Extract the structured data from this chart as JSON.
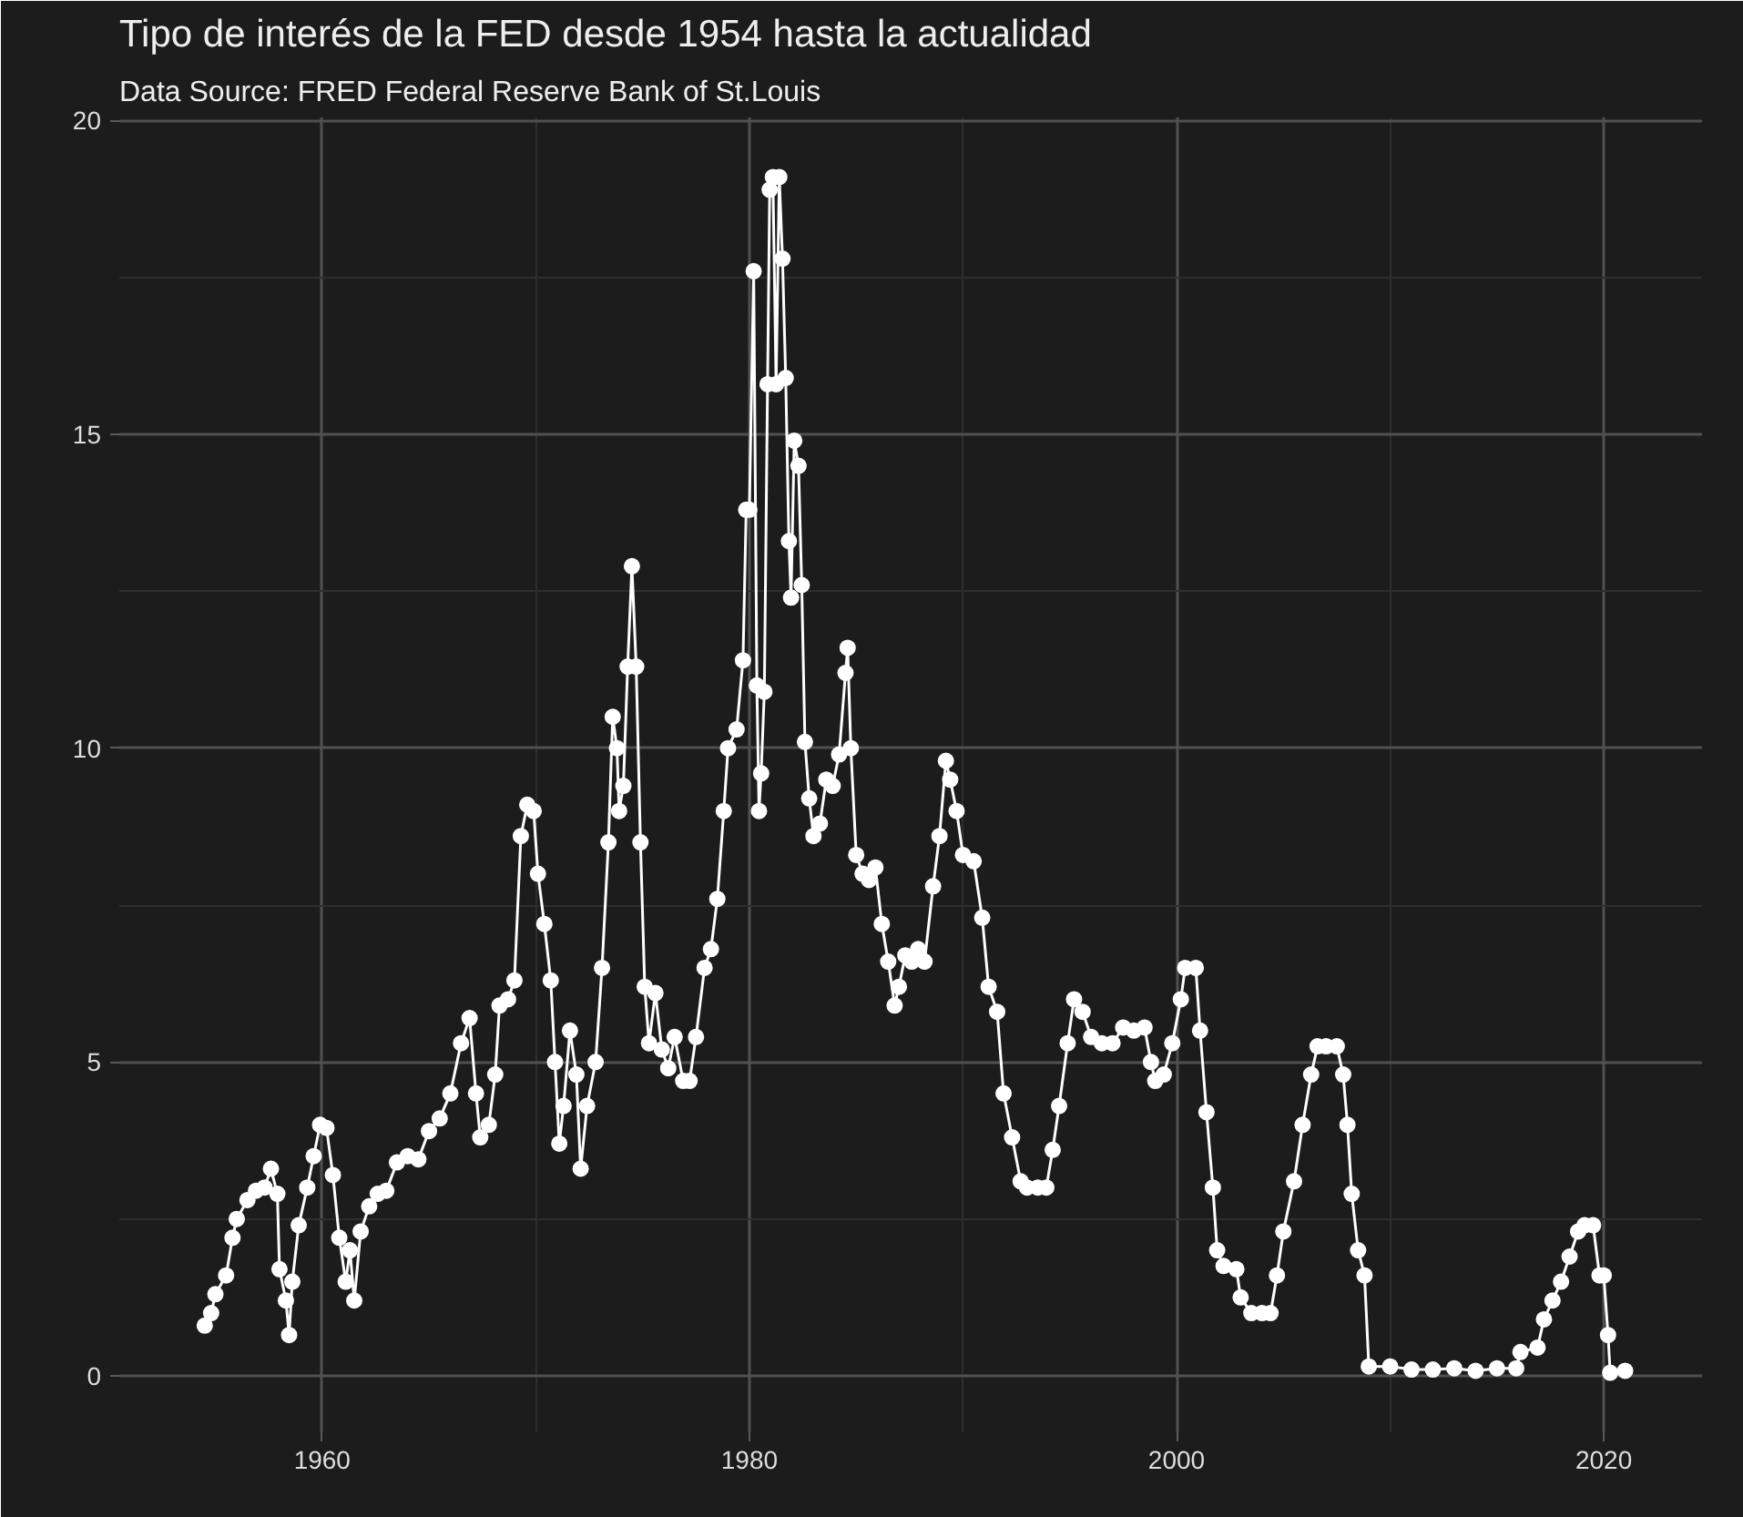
{
  "chart_data": {
    "type": "line",
    "title": "Tipo de interés de la FED desde 1954 hasta la actualidad",
    "subtitle": "Data Source: FRED Federal Reserve Bank of St.Louis",
    "x": [
      1954.5,
      1954.8,
      1955.0,
      1955.5,
      1955.8,
      1956.0,
      1956.5,
      1956.9,
      1957.3,
      1957.6,
      1957.9,
      1958.0,
      1958.3,
      1958.45,
      1958.6,
      1958.9,
      1959.3,
      1959.6,
      1959.9,
      1960.2,
      1960.5,
      1960.8,
      1961.1,
      1961.3,
      1961.5,
      1961.8,
      1962.2,
      1962.6,
      1963.0,
      1963.5,
      1964.0,
      1964.5,
      1965.0,
      1965.5,
      1966.0,
      1966.5,
      1966.9,
      1967.2,
      1967.4,
      1967.8,
      1968.1,
      1968.3,
      1968.7,
      1969.0,
      1969.3,
      1969.6,
      1969.9,
      1970.1,
      1970.4,
      1970.7,
      1970.9,
      1971.1,
      1971.3,
      1971.6,
      1971.9,
      1972.1,
      1972.4,
      1972.8,
      1973.1,
      1973.4,
      1973.6,
      1973.8,
      1973.9,
      1974.1,
      1974.3,
      1974.5,
      1974.7,
      1974.9,
      1975.1,
      1975.3,
      1975.6,
      1975.9,
      1976.2,
      1976.5,
      1976.9,
      1977.2,
      1977.5,
      1977.9,
      1978.2,
      1978.5,
      1978.8,
      1979.0,
      1979.4,
      1979.7,
      1979.85,
      1980.0,
      1980.2,
      1980.35,
      1980.45,
      1980.55,
      1980.7,
      1980.85,
      1980.95,
      1981.1,
      1981.25,
      1981.4,
      1981.55,
      1981.7,
      1981.85,
      1981.95,
      1982.1,
      1982.3,
      1982.45,
      1982.6,
      1982.8,
      1983.0,
      1983.3,
      1983.6,
      1983.9,
      1984.2,
      1984.5,
      1984.6,
      1984.75,
      1985.0,
      1985.3,
      1985.6,
      1985.9,
      1986.2,
      1986.5,
      1986.8,
      1987.0,
      1987.3,
      1987.6,
      1987.9,
      1988.2,
      1988.6,
      1988.9,
      1989.2,
      1989.4,
      1989.7,
      1990.0,
      1990.5,
      1990.9,
      1991.2,
      1991.6,
      1991.9,
      1992.3,
      1992.7,
      1993.0,
      1993.5,
      1993.9,
      1994.2,
      1994.5,
      1994.9,
      1995.2,
      1995.6,
      1996.0,
      1996.5,
      1997.0,
      1997.5,
      1998.0,
      1998.5,
      1998.8,
      1999.0,
      1999.4,
      1999.8,
      2000.2,
      2000.4,
      2000.9,
      2001.1,
      2001.4,
      2001.7,
      2001.9,
      2002.2,
      2002.8,
      2003.0,
      2003.5,
      2004.0,
      2004.4,
      2004.7,
      2005.0,
      2005.5,
      2005.9,
      2006.3,
      2006.6,
      2007.0,
      2007.5,
      2007.8,
      2008.0,
      2008.2,
      2008.5,
      2008.8,
      2009.0,
      2010.0,
      2011.0,
      2012.0,
      2013.0,
      2014.0,
      2015.0,
      2015.9,
      2016.1,
      2016.9,
      2017.2,
      2017.6,
      2018.0,
      2018.4,
      2018.8,
      2019.1,
      2019.5,
      2019.8,
      2020.0,
      2020.2,
      2020.3,
      2021.0
    ],
    "series": [
      {
        "color": "#ffffff",
        "values": [
          0.8,
          1.0,
          1.3,
          1.6,
          2.2,
          2.5,
          2.8,
          2.95,
          3.0,
          3.3,
          2.9,
          1.7,
          1.2,
          0.65,
          1.5,
          2.4,
          3.0,
          3.5,
          4.0,
          3.95,
          3.2,
          2.2,
          1.5,
          2.0,
          1.2,
          2.3,
          2.7,
          2.9,
          2.95,
          3.4,
          3.5,
          3.45,
          3.9,
          4.1,
          4.5,
          5.3,
          5.7,
          4.5,
          3.8,
          4.0,
          4.8,
          5.9,
          6.0,
          6.3,
          8.6,
          9.1,
          9.0,
          8.0,
          7.2,
          6.3,
          5.0,
          3.7,
          4.3,
          5.5,
          4.8,
          3.3,
          4.3,
          5.0,
          6.5,
          8.5,
          10.5,
          10.0,
          9.0,
          9.4,
          11.3,
          12.9,
          11.3,
          8.5,
          6.2,
          5.3,
          6.1,
          5.2,
          4.9,
          5.4,
          4.7,
          4.7,
          5.4,
          6.5,
          6.8,
          7.6,
          9.0,
          10.0,
          10.3,
          11.4,
          13.8,
          13.8,
          17.6,
          11.0,
          9.0,
          9.6,
          10.9,
          15.8,
          18.9,
          19.1,
          15.8,
          19.1,
          17.8,
          15.9,
          13.3,
          12.4,
          14.9,
          14.5,
          12.6,
          10.1,
          9.2,
          8.6,
          8.8,
          9.5,
          9.4,
          9.9,
          11.2,
          11.6,
          10.0,
          8.3,
          8.0,
          7.9,
          8.1,
          7.2,
          6.6,
          5.9,
          6.2,
          6.7,
          6.6,
          6.8,
          6.6,
          7.8,
          8.6,
          9.8,
          9.5,
          9.0,
          8.3,
          8.2,
          7.3,
          6.2,
          5.8,
          4.5,
          3.8,
          3.1,
          3.0,
          3.0,
          3.0,
          3.6,
          4.3,
          5.3,
          6.0,
          5.8,
          5.4,
          5.3,
          5.3,
          5.55,
          5.5,
          5.55,
          5.0,
          4.7,
          4.8,
          5.3,
          6.0,
          6.5,
          6.5,
          5.5,
          4.2,
          3.0,
          2.0,
          1.75,
          1.7,
          1.25,
          1.0,
          1.0,
          1.0,
          1.6,
          2.3,
          3.1,
          4.0,
          4.8,
          5.25,
          5.25,
          5.25,
          4.8,
          4.0,
          2.9,
          2.0,
          1.6,
          0.15,
          0.15,
          0.1,
          0.1,
          0.12,
          0.08,
          0.12,
          0.12,
          0.38,
          0.45,
          0.9,
          1.2,
          1.5,
          1.9,
          2.3,
          2.4,
          2.4,
          1.6,
          1.6,
          0.65,
          0.05,
          0.08
        ]
      }
    ],
    "xlim": [
      1950.5,
      2024.6
    ],
    "ylim": [
      -0.9,
      20.05
    ],
    "xticks": [
      1960,
      1980,
      2000,
      2020
    ],
    "yticks": [
      0,
      5,
      10,
      15,
      20
    ],
    "grid": true,
    "marker": "circle",
    "line_style": "solid"
  }
}
